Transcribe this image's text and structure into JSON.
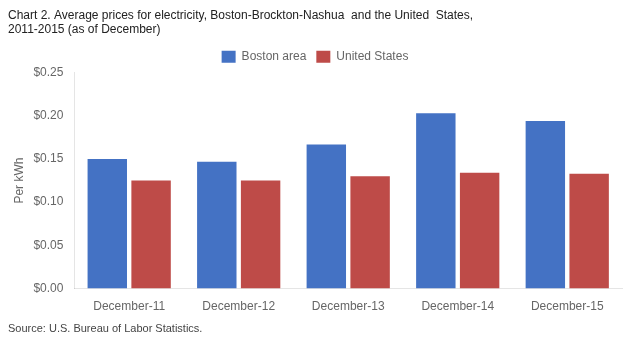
{
  "chart_data": {
    "type": "bar",
    "title": [
      "Chart 2. Average prices for electricity, Boston-Brockton-Nashua  and the United  States,",
      "2011-2015 (as of December)"
    ],
    "ylabel": "Per kWh",
    "annotations": [
      "Source: U.S. Bureau of Labor Statistics."
    ],
    "categories": [
      "December-11",
      "December-12",
      "December-13",
      "December-14",
      "December-15"
    ],
    "series": [
      {
        "name": "Boston area",
        "color": "#4472C4",
        "values": [
          0.15,
          0.147,
          0.167,
          0.203,
          0.194
        ]
      },
      {
        "name": "United States",
        "color": "#BE4B48",
        "values": [
          0.125,
          0.125,
          0.13,
          0.134,
          0.133
        ]
      }
    ],
    "ylim": [
      0,
      0.25
    ],
    "yticks": [
      {
        "value": 0.0,
        "label": "$0.00"
      },
      {
        "value": 0.05,
        "label": "$0.05"
      },
      {
        "value": 0.1,
        "label": "$0.10"
      },
      {
        "value": 0.15,
        "label": "$0.15"
      },
      {
        "value": 0.2,
        "label": "$0.20"
      },
      {
        "value": 0.25,
        "label": "$0.25"
      }
    ],
    "grid": false,
    "legend": "top"
  }
}
